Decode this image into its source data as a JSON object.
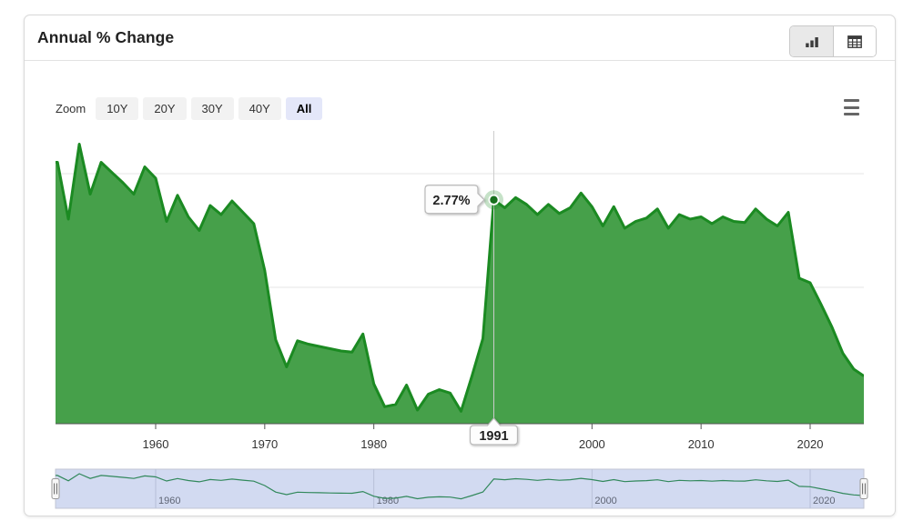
{
  "header": {
    "title": "Annual % Change",
    "view_toggle": {
      "chart_button": {
        "icon": "bar-chart-icon",
        "active": true
      },
      "table_button": {
        "icon": "table-icon",
        "active": false
      }
    }
  },
  "toolbar": {
    "zoom_label": "Zoom",
    "zoom_buttons": [
      {
        "label": "10Y",
        "active": false
      },
      {
        "label": "20Y",
        "active": false
      },
      {
        "label": "30Y",
        "active": false
      },
      {
        "label": "40Y",
        "active": false
      },
      {
        "label": "All",
        "active": true
      }
    ],
    "menu_icon": "hamburger-menu-icon"
  },
  "tooltip": {
    "value": "2.77%",
    "year": "1991"
  },
  "chart_data": {
    "type": "area",
    "title": "Annual % Change",
    "x": [
      1951,
      1952,
      1953,
      1954,
      1955,
      1956,
      1957,
      1958,
      1959,
      1960,
      1961,
      1962,
      1963,
      1964,
      1965,
      1966,
      1967,
      1968,
      1969,
      1970,
      1971,
      1972,
      1973,
      1974,
      1975,
      1976,
      1977,
      1978,
      1979,
      1980,
      1981,
      1982,
      1983,
      1984,
      1985,
      1986,
      1987,
      1988,
      1989,
      1990,
      1991,
      1992,
      1993,
      1994,
      1995,
      1996,
      1997,
      1998,
      1999,
      2000,
      2001,
      2002,
      2003,
      2004,
      2005,
      2006,
      2007,
      2008,
      2009,
      2010,
      2011,
      2012,
      2013,
      2014,
      2015,
      2016,
      2017,
      2018,
      2019,
      2020,
      2021,
      2022,
      2023,
      2024,
      2025
    ],
    "values": [
      3.1,
      2.6,
      3.26,
      2.82,
      3.1,
      3.01,
      2.92,
      2.82,
      3.06,
      2.96,
      2.58,
      2.81,
      2.62,
      2.5,
      2.72,
      2.64,
      2.76,
      2.66,
      2.56,
      2.15,
      1.54,
      1.3,
      1.53,
      1.5,
      1.48,
      1.46,
      1.44,
      1.43,
      1.59,
      1.15,
      0.95,
      0.97,
      1.14,
      0.92,
      1.06,
      1.1,
      1.07,
      0.91,
      1.22,
      1.55,
      2.77,
      2.7,
      2.79,
      2.73,
      2.64,
      2.73,
      2.65,
      2.7,
      2.83,
      2.71,
      2.54,
      2.71,
      2.52,
      2.58,
      2.61,
      2.69,
      2.52,
      2.64,
      2.6,
      2.62,
      2.56,
      2.62,
      2.58,
      2.57,
      2.69,
      2.6,
      2.54,
      2.66,
      2.08,
      2.04,
      1.85,
      1.65,
      1.42,
      1.28,
      1.22
    ],
    "x_ticks": [
      1960,
      1970,
      1980,
      2000,
      2010,
      2020
    ],
    "xlim": [
      1950.8,
      2024.9
    ],
    "ylim": [
      0.8,
      3.38
    ],
    "y_gridlines": [
      2,
      3
    ],
    "grid": "on",
    "legend": "off",
    "selected_point": {
      "x": 1991,
      "y": 2.77,
      "label": "2.77%"
    },
    "colors": {
      "area_fill": "#46a04a",
      "line": "#1b8a22",
      "marker": "#17701d",
      "halo": "rgba(27,138,34,0.25)",
      "crosshair": "#cccccc",
      "gridline": "#e6e6e6",
      "axis_line": "#555555"
    }
  },
  "navigator": {
    "tick_years": [
      1960,
      1980,
      2000,
      2020
    ],
    "tick_labels": [
      "1960",
      "1980",
      "2000",
      "2020"
    ],
    "mask_color": "#d2daf1",
    "outline_color": "#c2c6d4",
    "gridline_color": "#b7bfd8",
    "line_color": "#31885b",
    "label_color": "#5f6575"
  }
}
